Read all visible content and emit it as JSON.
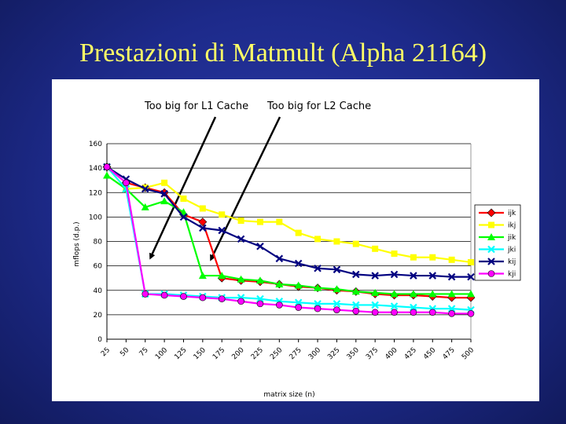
{
  "title": "Prestazioni di Matmult (Alpha 21164)",
  "chart_data": {
    "type": "line",
    "xlabel": "matrix size (n)",
    "ylabel": "mflops (d.p.)",
    "ylim": [
      0,
      160
    ],
    "yticks": [
      0,
      20,
      40,
      60,
      80,
      100,
      120,
      140,
      160
    ],
    "legend_position": "right",
    "annotations": [
      "Too big for L1 Cache",
      "Too big for L2 Cache"
    ],
    "x": [
      "25",
      "50",
      "75",
      "100",
      "125",
      "150",
      "175",
      "200",
      "225",
      "250",
      "275",
      "300",
      "325",
      "350",
      "375",
      "400",
      "425",
      "450",
      "475",
      "500"
    ],
    "series": [
      {
        "name": "ijk",
        "color": "#ff0000",
        "marker": "diamond",
        "values": [
          141,
          128,
          124,
          120,
          102,
          96,
          50,
          48,
          47,
          45,
          43,
          42,
          40,
          39,
          37,
          36,
          36,
          35,
          34,
          34
        ]
      },
      {
        "name": "ikj",
        "color": "#ffff00",
        "marker": "square",
        "values": [
          141,
          123,
          124,
          128,
          115,
          107,
          102,
          97,
          96,
          96,
          87,
          82,
          80,
          78,
          74,
          70,
          67,
          67,
          65,
          63
        ]
      },
      {
        "name": "jik",
        "color": "#00ff00",
        "marker": "triangle",
        "values": [
          134,
          123,
          108,
          113,
          104,
          52,
          52,
          49,
          48,
          45,
          44,
          42,
          41,
          39,
          38,
          37,
          37,
          37,
          37,
          37
        ]
      },
      {
        "name": "jki",
        "color": "#00ffff",
        "marker": "x",
        "values": [
          141,
          123,
          37,
          37,
          36,
          35,
          34,
          34,
          33,
          31,
          30,
          29,
          29,
          28,
          28,
          27,
          26,
          25,
          25,
          24
        ]
      },
      {
        "name": "kij",
        "color": "#000080",
        "marker": "x",
        "values": [
          141,
          131,
          123,
          119,
          100,
          91,
          89,
          82,
          76,
          66,
          62,
          58,
          57,
          53,
          52,
          53,
          52,
          52,
          51,
          51
        ]
      },
      {
        "name": "kji",
        "color": "#ff00ff",
        "marker": "circle",
        "values": [
          141,
          128,
          37,
          36,
          35,
          34,
          33,
          31,
          29,
          28,
          26,
          25,
          24,
          23,
          22,
          22,
          22,
          22,
          21,
          21
        ]
      }
    ]
  }
}
